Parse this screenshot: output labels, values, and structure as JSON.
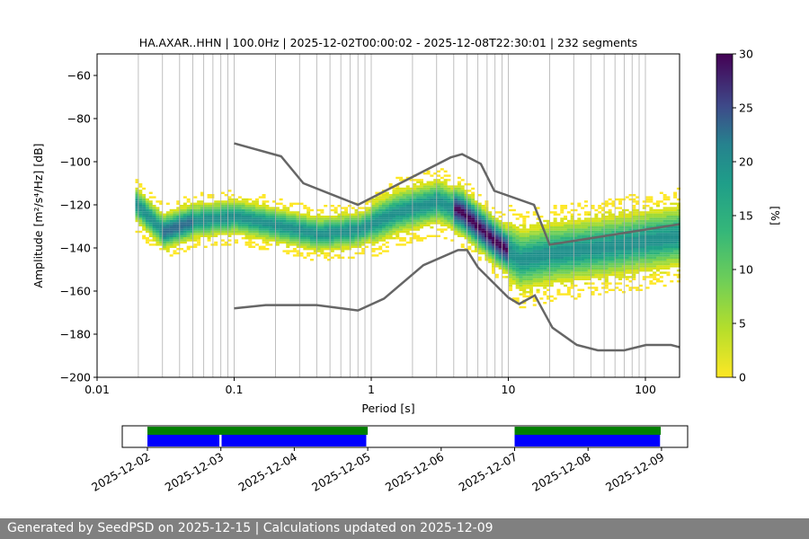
{
  "chart_data": {
    "type": "heatmap",
    "title": "HA.AXAR..HHN | 100.0Hz | 2025-12-02T00:00:02 - 2025-12-08T22:30:01 | 232 segments",
    "xlabel": "Period [s]",
    "ylabel": "Amplitude [m²/s⁴/Hz] [dB]",
    "xscale": "log",
    "xlim": [
      0.01,
      177
    ],
    "ylim": [
      -200,
      -50
    ],
    "xticks": [
      {
        "v": 0.01,
        "label": "0.01"
      },
      {
        "v": 0.1,
        "label": "0.1"
      },
      {
        "v": 1,
        "label": "1"
      },
      {
        "v": 10,
        "label": "10"
      },
      {
        "v": 100,
        "label": "100"
      }
    ],
    "yticks": [
      {
        "v": -60,
        "label": "−60"
      },
      {
        "v": -80,
        "label": "−80"
      },
      {
        "v": -100,
        "label": "−100"
      },
      {
        "v": -120,
        "label": "−120"
      },
      {
        "v": -140,
        "label": "−140"
      },
      {
        "v": -160,
        "label": "−160"
      },
      {
        "v": -180,
        "label": "−180"
      },
      {
        "v": -200,
        "label": "−200"
      }
    ],
    "grid": "vertical",
    "colorbar": {
      "label": "[%]",
      "range": [
        0,
        30
      ],
      "ticks": [
        "0",
        "5",
        "10",
        "15",
        "20",
        "25",
        "30"
      ],
      "cmap": "viridis_r"
    },
    "pdf_mode_curve": [
      [
        0.02,
        -122
      ],
      [
        0.03,
        -133
      ],
      [
        0.05,
        -128
      ],
      [
        0.1,
        -126
      ],
      [
        0.2,
        -130
      ],
      [
        0.4,
        -134
      ],
      [
        0.8,
        -132
      ],
      [
        1.5,
        -124
      ],
      [
        3,
        -119
      ],
      [
        4.5,
        -124
      ],
      [
        6,
        -131
      ],
      [
        8,
        -138
      ],
      [
        12,
        -146
      ],
      [
        20,
        -143
      ],
      [
        50,
        -140
      ],
      [
        177,
        -135
      ]
    ],
    "high_noise_model": [
      [
        0.1,
        -91.5
      ],
      [
        0.22,
        -97.5
      ],
      [
        0.32,
        -110
      ],
      [
        0.8,
        -120
      ],
      [
        3.8,
        -98
      ],
      [
        4.6,
        -96.5
      ],
      [
        6.3,
        -101
      ],
      [
        7.9,
        -113.5
      ],
      [
        15.4,
        -120
      ],
      [
        20,
        -138.5
      ],
      [
        177,
        -129
      ]
    ],
    "low_noise_model": [
      [
        0.1,
        -168
      ],
      [
        0.17,
        -166.5
      ],
      [
        0.4,
        -166.5
      ],
      [
        0.8,
        -169
      ],
      [
        1.24,
        -163.5
      ],
      [
        2.4,
        -148
      ],
      [
        4.3,
        -141
      ],
      [
        5,
        -141
      ],
      [
        6,
        -149
      ],
      [
        10,
        -163
      ],
      [
        12,
        -166
      ],
      [
        15.6,
        -162
      ],
      [
        21,
        -177
      ],
      [
        31.6,
        -185
      ],
      [
        45,
        -187.5
      ],
      [
        70,
        -187.5
      ],
      [
        101,
        -185
      ],
      [
        154,
        -185
      ],
      [
        177,
        -186
      ]
    ],
    "availability": {
      "date_ticks": [
        "2025-12-02",
        "2025-12-03",
        "2025-12-04",
        "2025-12-05",
        "2025-12-06",
        "2025-12-07",
        "2025-12-08",
        "2025-12-09"
      ],
      "data_spans": [
        [
          0,
          3
        ],
        [
          5,
          6.99
        ]
      ],
      "psd_spans": [
        [
          0,
          0.98
        ],
        [
          1.01,
          2.98
        ],
        [
          5,
          6.98
        ]
      ],
      "colors": {
        "data": "#008000",
        "psd": "#0000ff"
      }
    }
  },
  "footer": "Generated by SeedPSD on 2025-12-15 | Calculations updated on 2025-12-09"
}
